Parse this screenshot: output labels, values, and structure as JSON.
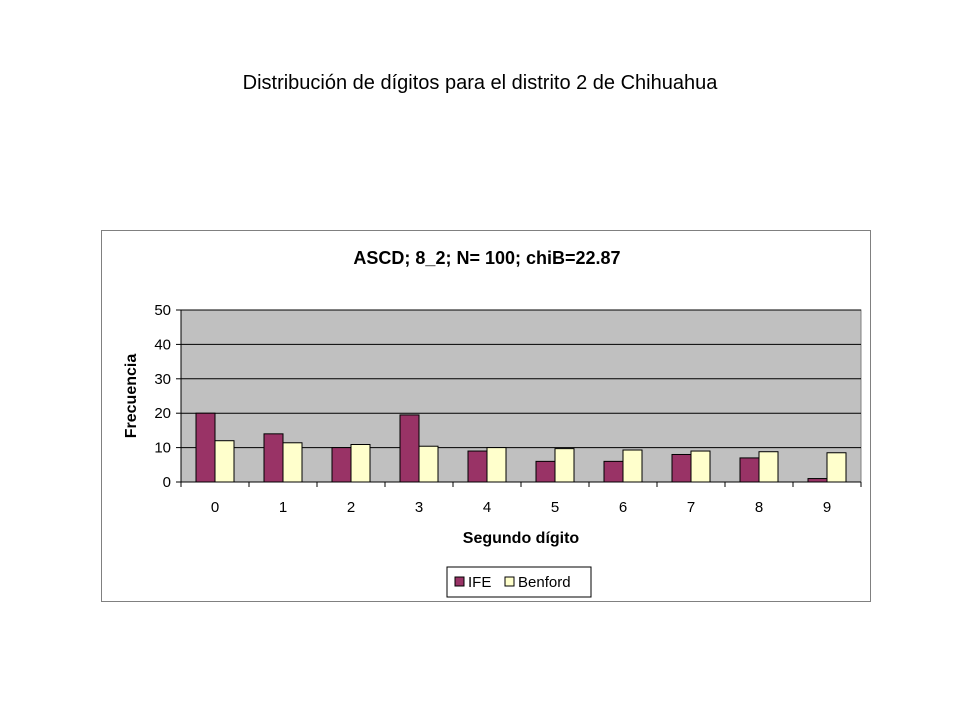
{
  "slide": {
    "title": "Distribución de dígitos para el distrito 2 de Chihuahua"
  },
  "chart_data": {
    "type": "bar",
    "title": "ASCD; 8_2; N= 100; chiB=22.87",
    "xlabel": "Segundo dígito",
    "ylabel": "Frecuencia",
    "categories": [
      "0",
      "1",
      "2",
      "3",
      "4",
      "5",
      "6",
      "7",
      "8",
      "9"
    ],
    "ylim": [
      0,
      50
    ],
    "yticks": [
      0,
      10,
      20,
      30,
      40,
      50
    ],
    "grid": true,
    "legend_position": "bottom",
    "plot_background": "#c0c0c0",
    "series": [
      {
        "name": "IFE",
        "color": "#993366",
        "values": [
          20,
          14,
          10,
          19.5,
          9,
          6,
          6,
          8,
          7,
          1
        ]
      },
      {
        "name": "Benford",
        "color": "#ffffcc",
        "values": [
          12,
          11.4,
          10.9,
          10.4,
          10,
          9.7,
          9.3,
          9,
          8.8,
          8.5
        ]
      }
    ]
  }
}
